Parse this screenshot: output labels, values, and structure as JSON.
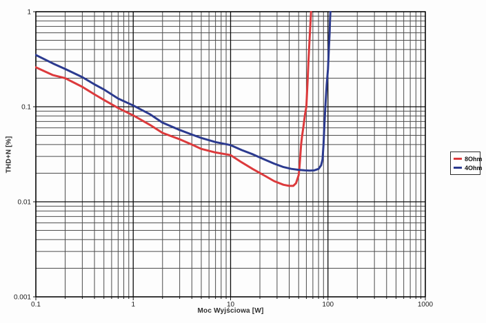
{
  "background_color": "#fdfdfd",
  "grid": {
    "minor_color": "#4b4b4b",
    "major_color": "#0a0a0a",
    "border_color": "#000000"
  },
  "legend": {
    "items": [
      {
        "label": "8Ohm",
        "color": "#dc3a3c"
      },
      {
        "label": "4Ohm",
        "color": "#2b3a8f"
      }
    ]
  },
  "chart_data": {
    "type": "line",
    "title": "",
    "xlabel": "Moc Wyjściowa [W]",
    "ylabel": "THD+N [%]",
    "x_scale": "log",
    "y_scale": "log",
    "xlim": [
      0.1,
      1000
    ],
    "ylim": [
      0.001,
      1
    ],
    "grid": "log major + minor, both axes",
    "legend_position": "right-outside",
    "x_ticks": [
      {
        "v": 0.1,
        "label": "0.1"
      },
      {
        "v": 1,
        "label": "1"
      },
      {
        "v": 10,
        "label": "10"
      },
      {
        "v": 100,
        "label": "100"
      },
      {
        "v": 1000,
        "label": "1000"
      }
    ],
    "y_ticks": [
      {
        "v": 1,
        "label": "1"
      },
      {
        "v": 0.1,
        "label": "0.1"
      },
      {
        "v": 0.01,
        "label": "0.01"
      },
      {
        "v": 0.001,
        "label": "0.001"
      }
    ],
    "series": [
      {
        "name": "8Ohm",
        "color": "#dc3a3c",
        "points": [
          [
            0.1,
            0.26
          ],
          [
            0.15,
            0.215
          ],
          [
            0.2,
            0.2
          ],
          [
            0.3,
            0.162
          ],
          [
            0.4,
            0.135
          ],
          [
            0.5,
            0.118
          ],
          [
            0.7,
            0.097
          ],
          [
            1,
            0.081
          ],
          [
            1.5,
            0.064
          ],
          [
            2,
            0.053
          ],
          [
            3,
            0.0455
          ],
          [
            4,
            0.04
          ],
          [
            5,
            0.036
          ],
          [
            7,
            0.033
          ],
          [
            10,
            0.031
          ],
          [
            13,
            0.026
          ],
          [
            17,
            0.022
          ],
          [
            22,
            0.019
          ],
          [
            28,
            0.0165
          ],
          [
            35,
            0.0151
          ],
          [
            40,
            0.0147
          ],
          [
            44,
            0.0147
          ],
          [
            47,
            0.0157
          ],
          [
            50,
            0.019
          ],
          [
            51,
            0.023
          ],
          [
            52,
            0.03
          ],
          [
            53,
            0.04
          ],
          [
            54,
            0.048
          ],
          [
            56,
            0.062
          ],
          [
            58,
            0.082
          ],
          [
            60,
            0.1
          ],
          [
            62,
            0.2
          ],
          [
            63,
            0.3
          ],
          [
            65,
            0.55
          ],
          [
            66,
            0.75
          ],
          [
            67,
            1.0
          ]
        ]
      },
      {
        "name": "4Ohm",
        "color": "#2b3a8f",
        "points": [
          [
            0.1,
            0.35
          ],
          [
            0.15,
            0.285
          ],
          [
            0.2,
            0.25
          ],
          [
            0.3,
            0.205
          ],
          [
            0.4,
            0.172
          ],
          [
            0.5,
            0.152
          ],
          [
            0.7,
            0.122
          ],
          [
            1,
            0.103
          ],
          [
            1.5,
            0.083
          ],
          [
            2,
            0.068
          ],
          [
            3,
            0.057
          ],
          [
            4,
            0.051
          ],
          [
            5,
            0.047
          ],
          [
            7,
            0.0425
          ],
          [
            10,
            0.0395
          ],
          [
            13,
            0.035
          ],
          [
            17,
            0.0315
          ],
          [
            22,
            0.028
          ],
          [
            28,
            0.0252
          ],
          [
            35,
            0.0232
          ],
          [
            42,
            0.0222
          ],
          [
            50,
            0.0217
          ],
          [
            58,
            0.0214
          ],
          [
            65,
            0.0213
          ],
          [
            72,
            0.0214
          ],
          [
            80,
            0.0222
          ],
          [
            85,
            0.0242
          ],
          [
            88,
            0.028
          ],
          [
            90,
            0.04
          ],
          [
            92,
            0.065
          ],
          [
            94,
            0.1
          ],
          [
            97,
            0.17
          ],
          [
            100,
            0.25
          ],
          [
            102,
            0.4
          ],
          [
            104,
            0.6
          ],
          [
            105,
            0.8
          ],
          [
            106,
            1.0
          ]
        ]
      }
    ]
  }
}
